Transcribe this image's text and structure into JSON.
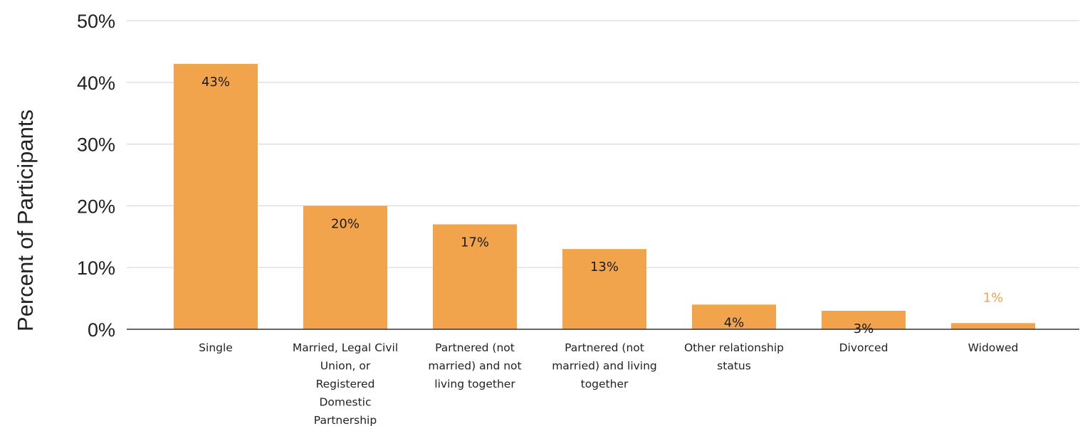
{
  "chart_data": {
    "type": "bar",
    "title": "",
    "xlabel": "",
    "ylabel": "Percent of Participants",
    "ylim": [
      0,
      50
    ],
    "yticks": [
      0,
      10,
      20,
      30,
      40,
      50
    ],
    "ytick_suffix": "%",
    "grid": true,
    "legend": "none",
    "bar_color": "#F2A44C",
    "inside_label_color": "#1a1a1a",
    "outside_label_color": "#F2A44C",
    "categories": [
      "Single",
      "Married, Legal Civil Union, or Registered Domestic Partnership",
      "Partnered (not married) and not living together",
      "Partnered (not married) and living together",
      "Other relationship status",
      "Divorced",
      "Widowed"
    ],
    "category_lines": [
      [
        "Single"
      ],
      [
        "Married, Legal Civil",
        "Union, or",
        "Registered",
        "Domestic",
        "Partnership"
      ],
      [
        "Partnered (not",
        "married) and not",
        "living together"
      ],
      [
        "Partnered (not",
        "married) and living",
        "together"
      ],
      [
        "Other relationship",
        "status"
      ],
      [
        "Divorced"
      ],
      [
        "Widowed"
      ]
    ],
    "values": [
      43,
      20,
      17,
      13,
      4,
      3,
      1
    ],
    "data_labels": [
      "43%",
      "20%",
      "17%",
      "13%",
      "4%",
      "3%",
      "1%"
    ]
  }
}
